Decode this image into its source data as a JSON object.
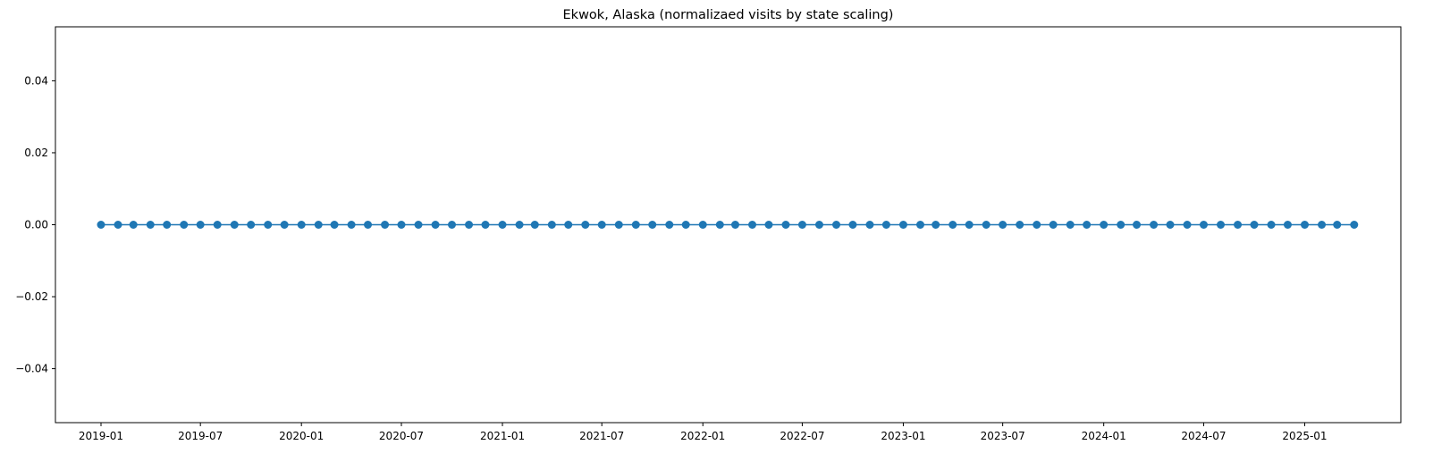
{
  "chart_data": {
    "type": "line",
    "title": "Ekwok, Alaska (normalizaed visits by state scaling)",
    "xlabel": "",
    "ylabel": "",
    "x_axis": {
      "kind": "date",
      "min": "2018-10-10",
      "max": "2025-06-25"
    },
    "ylim": [
      -0.055,
      0.055
    ],
    "xticks": [
      "2019-01",
      "2019-07",
      "2020-01",
      "2020-07",
      "2021-01",
      "2021-07",
      "2022-01",
      "2022-07",
      "2023-01",
      "2023-07",
      "2024-01",
      "2024-07",
      "2025-01"
    ],
    "yticks": [
      "0.04",
      "0.02",
      "0.00",
      "−0.02",
      "−0.04"
    ],
    "ytick_values": [
      0.04,
      0.02,
      0,
      -0.02,
      -0.04
    ],
    "series": [
      {
        "color": "#1f77b4",
        "marker": "circle",
        "x_start": "2019-01",
        "x_end": "2025-04",
        "frequency": "monthly",
        "count": 76,
        "values": [
          0,
          0,
          0,
          0,
          0,
          0,
          0,
          0,
          0,
          0,
          0,
          0,
          0,
          0,
          0,
          0,
          0,
          0,
          0,
          0,
          0,
          0,
          0,
          0,
          0,
          0,
          0,
          0,
          0,
          0,
          0,
          0,
          0,
          0,
          0,
          0,
          0,
          0,
          0,
          0,
          0,
          0,
          0,
          0,
          0,
          0,
          0,
          0,
          0,
          0,
          0,
          0,
          0,
          0,
          0,
          0,
          0,
          0,
          0,
          0,
          0,
          0,
          0,
          0,
          0,
          0,
          0,
          0,
          0,
          0,
          0,
          0,
          0,
          0,
          0,
          0
        ]
      }
    ],
    "grid": false,
    "legend": "none"
  }
}
